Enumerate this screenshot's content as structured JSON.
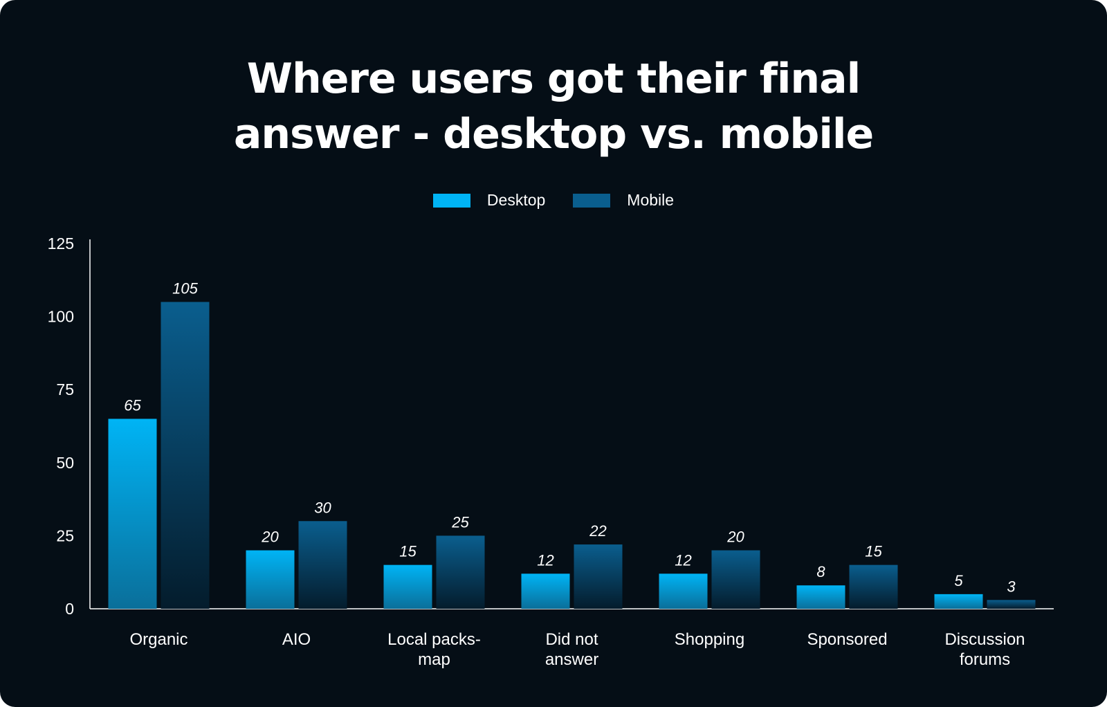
{
  "chart_data": {
    "type": "bar",
    "title": "Where users got their final answer - desktop vs. mobile",
    "title_lines": [
      "Where users got their final",
      "answer - desktop vs. mobile"
    ],
    "categories": [
      "Organic",
      "AIO",
      "Local packs-map",
      "Did not answer",
      "Shopping",
      "Sponsored",
      "Discussion forums"
    ],
    "category_lines": [
      [
        "Organic"
      ],
      [
        "AIO"
      ],
      [
        "Local packs-",
        "map"
      ],
      [
        "Did not",
        "answer"
      ],
      [
        "Shopping"
      ],
      [
        "Sponsored"
      ],
      [
        "Discussion",
        "forums"
      ]
    ],
    "series": [
      {
        "name": "Desktop",
        "values": [
          65,
          20,
          15,
          12,
          12,
          8,
          5
        ]
      },
      {
        "name": "Mobile",
        "values": [
          105,
          30,
          25,
          22,
          20,
          15,
          3
        ]
      }
    ],
    "ylim": [
      0,
      125
    ],
    "yticks": [
      0,
      25,
      50,
      75,
      100,
      125
    ],
    "xlabel": "",
    "ylabel": "",
    "grid": false,
    "legend_position": "top-center",
    "data_labels": true
  },
  "colors": {
    "background": "#050e16",
    "desktop_top": "#00b4f5",
    "desktop_bottom": "#0a6f9a",
    "mobile_top": "#0a5e8e",
    "mobile_bottom": "#041c2c",
    "text": "#ffffff"
  }
}
